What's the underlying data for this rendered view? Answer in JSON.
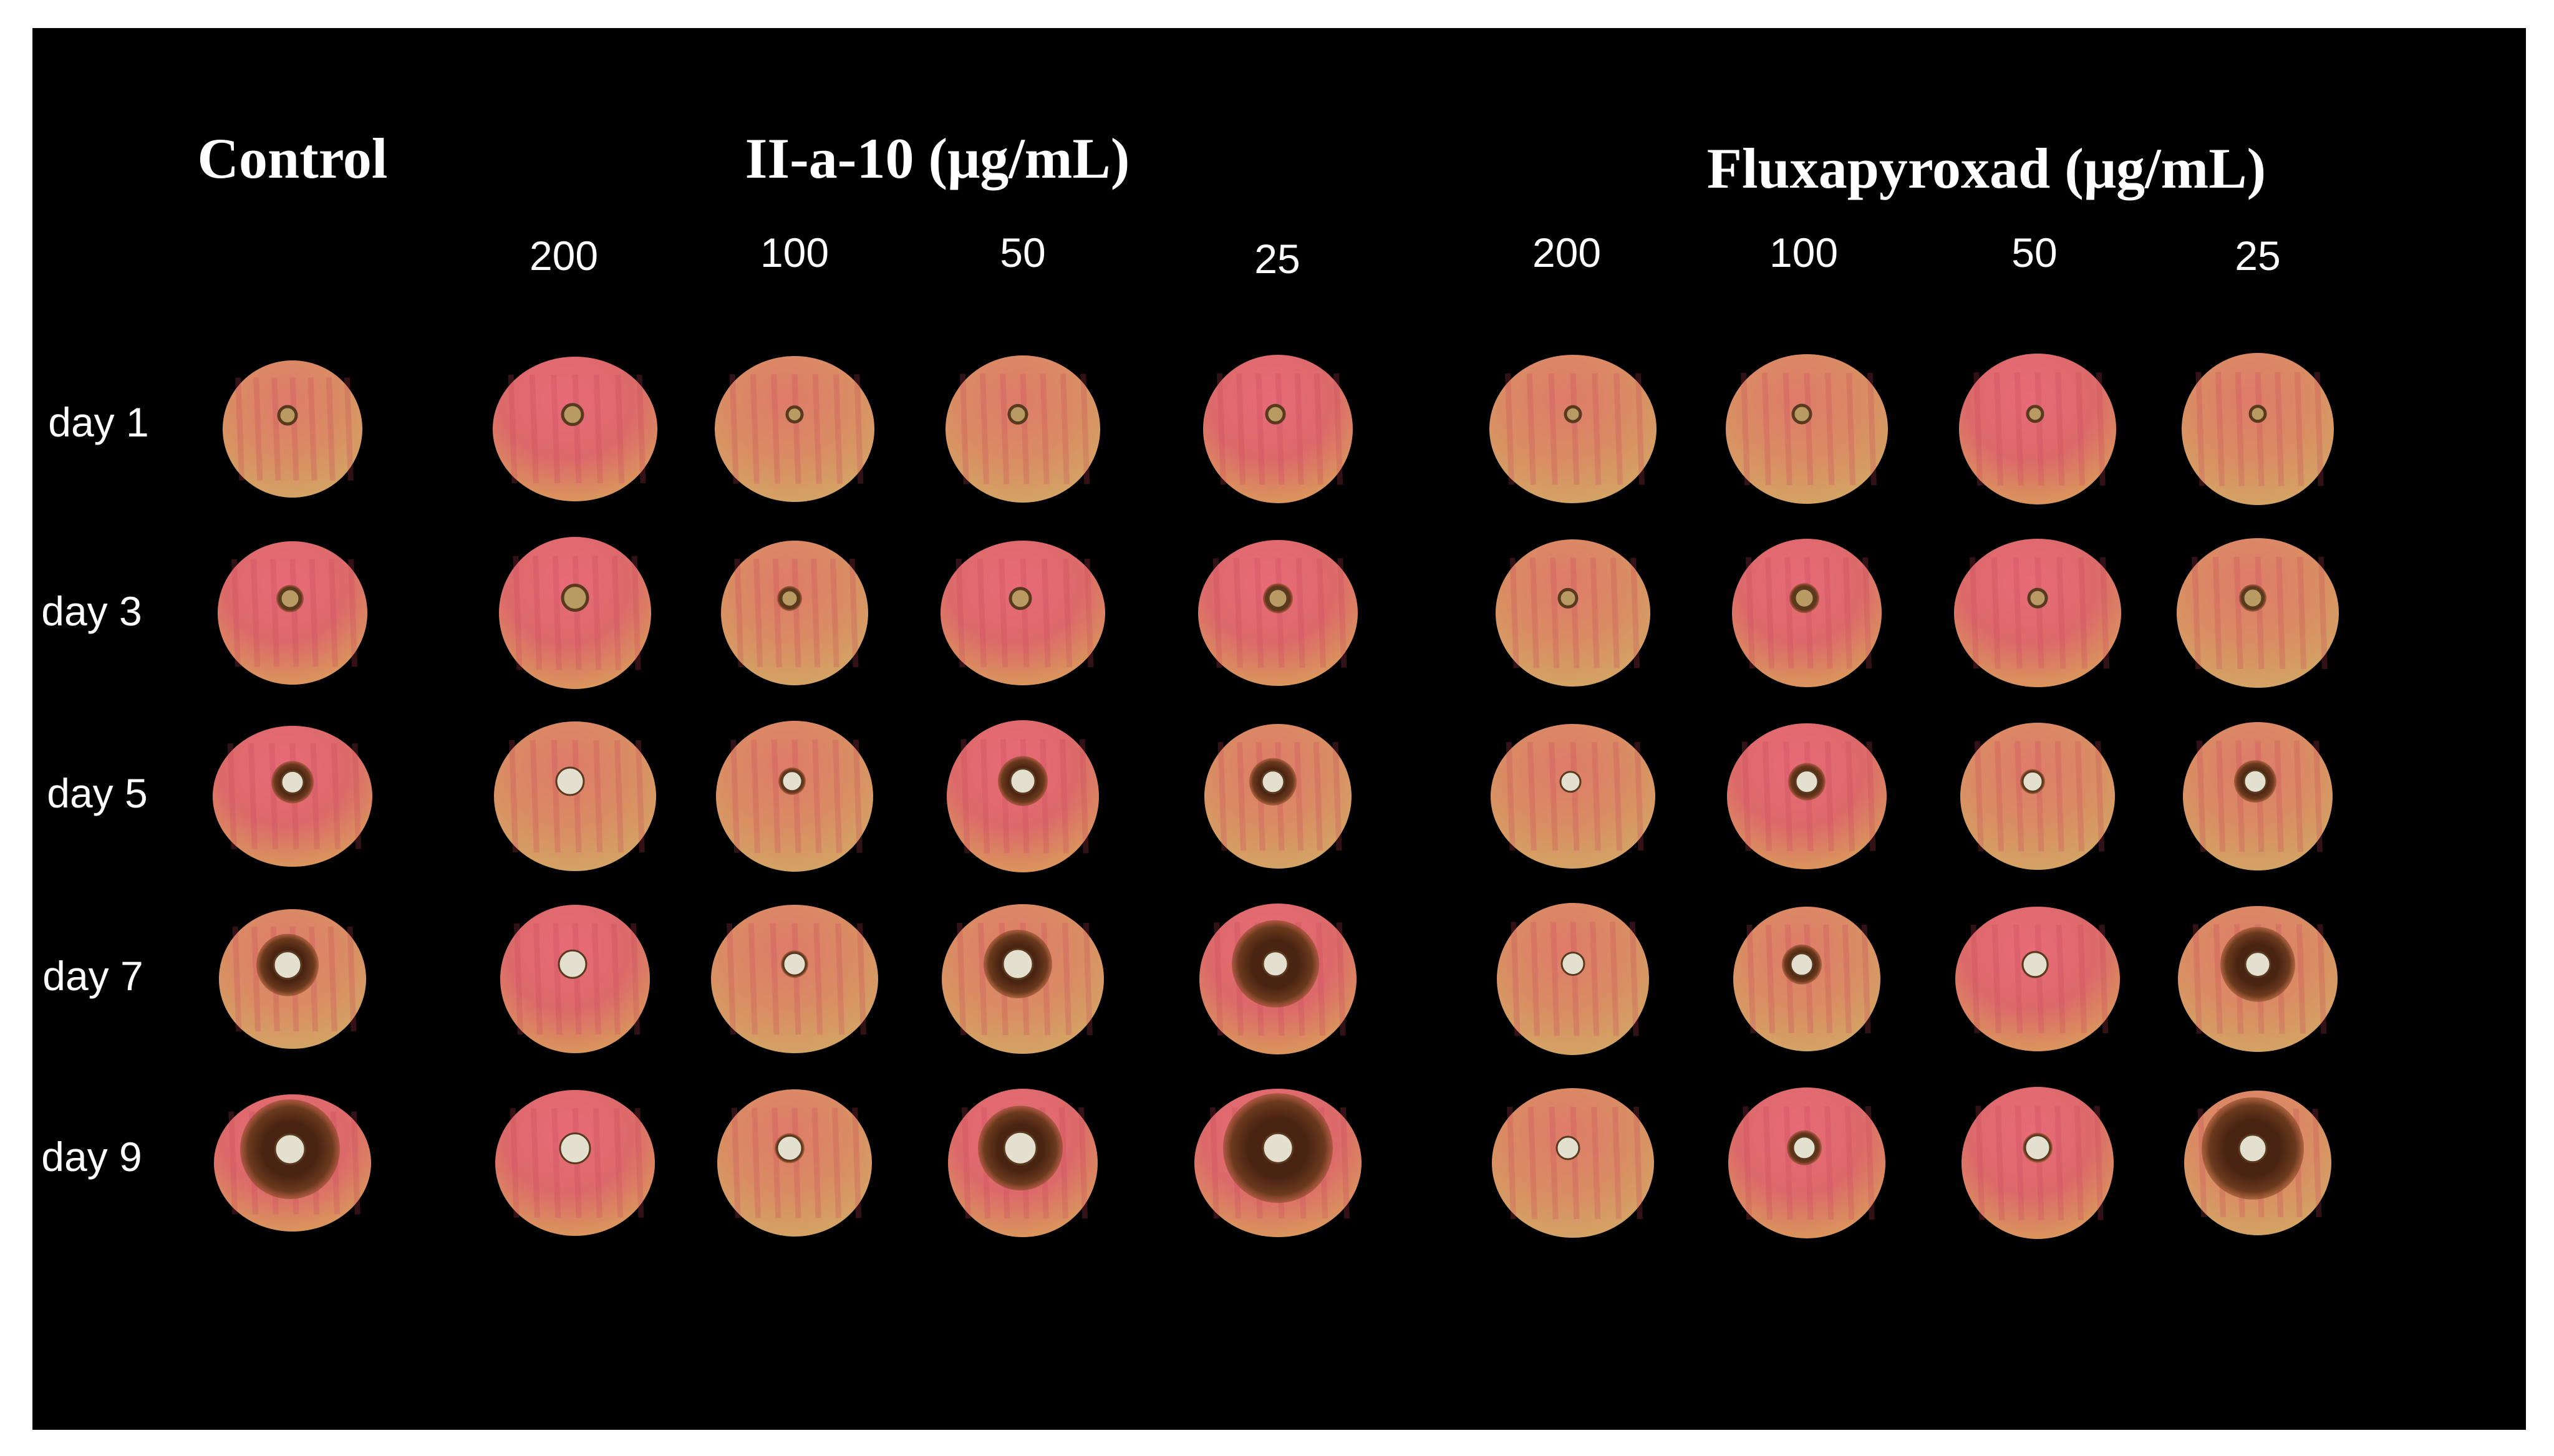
{
  "figure": {
    "background_color": "#000000",
    "fruit_colors": {
      "red": "#e0566c",
      "yellow": "#dc9a5e",
      "lesion": "#5a2e18",
      "lesion_edge": "#8a4a25",
      "plug": "#e4e0cf"
    },
    "header": {
      "control": "Control",
      "group_ii": "II-a-10 (μg/mL)",
      "group_flux": "Fluxapyroxad (μg/mL)"
    },
    "concentrations": {
      "ii": [
        "200",
        "100",
        "50",
        "25"
      ],
      "flux": [
        "200",
        "100",
        "50",
        "25"
      ]
    },
    "days": [
      "day 1",
      "day 3",
      "day 5",
      "day 7",
      "day 9"
    ]
  }
}
